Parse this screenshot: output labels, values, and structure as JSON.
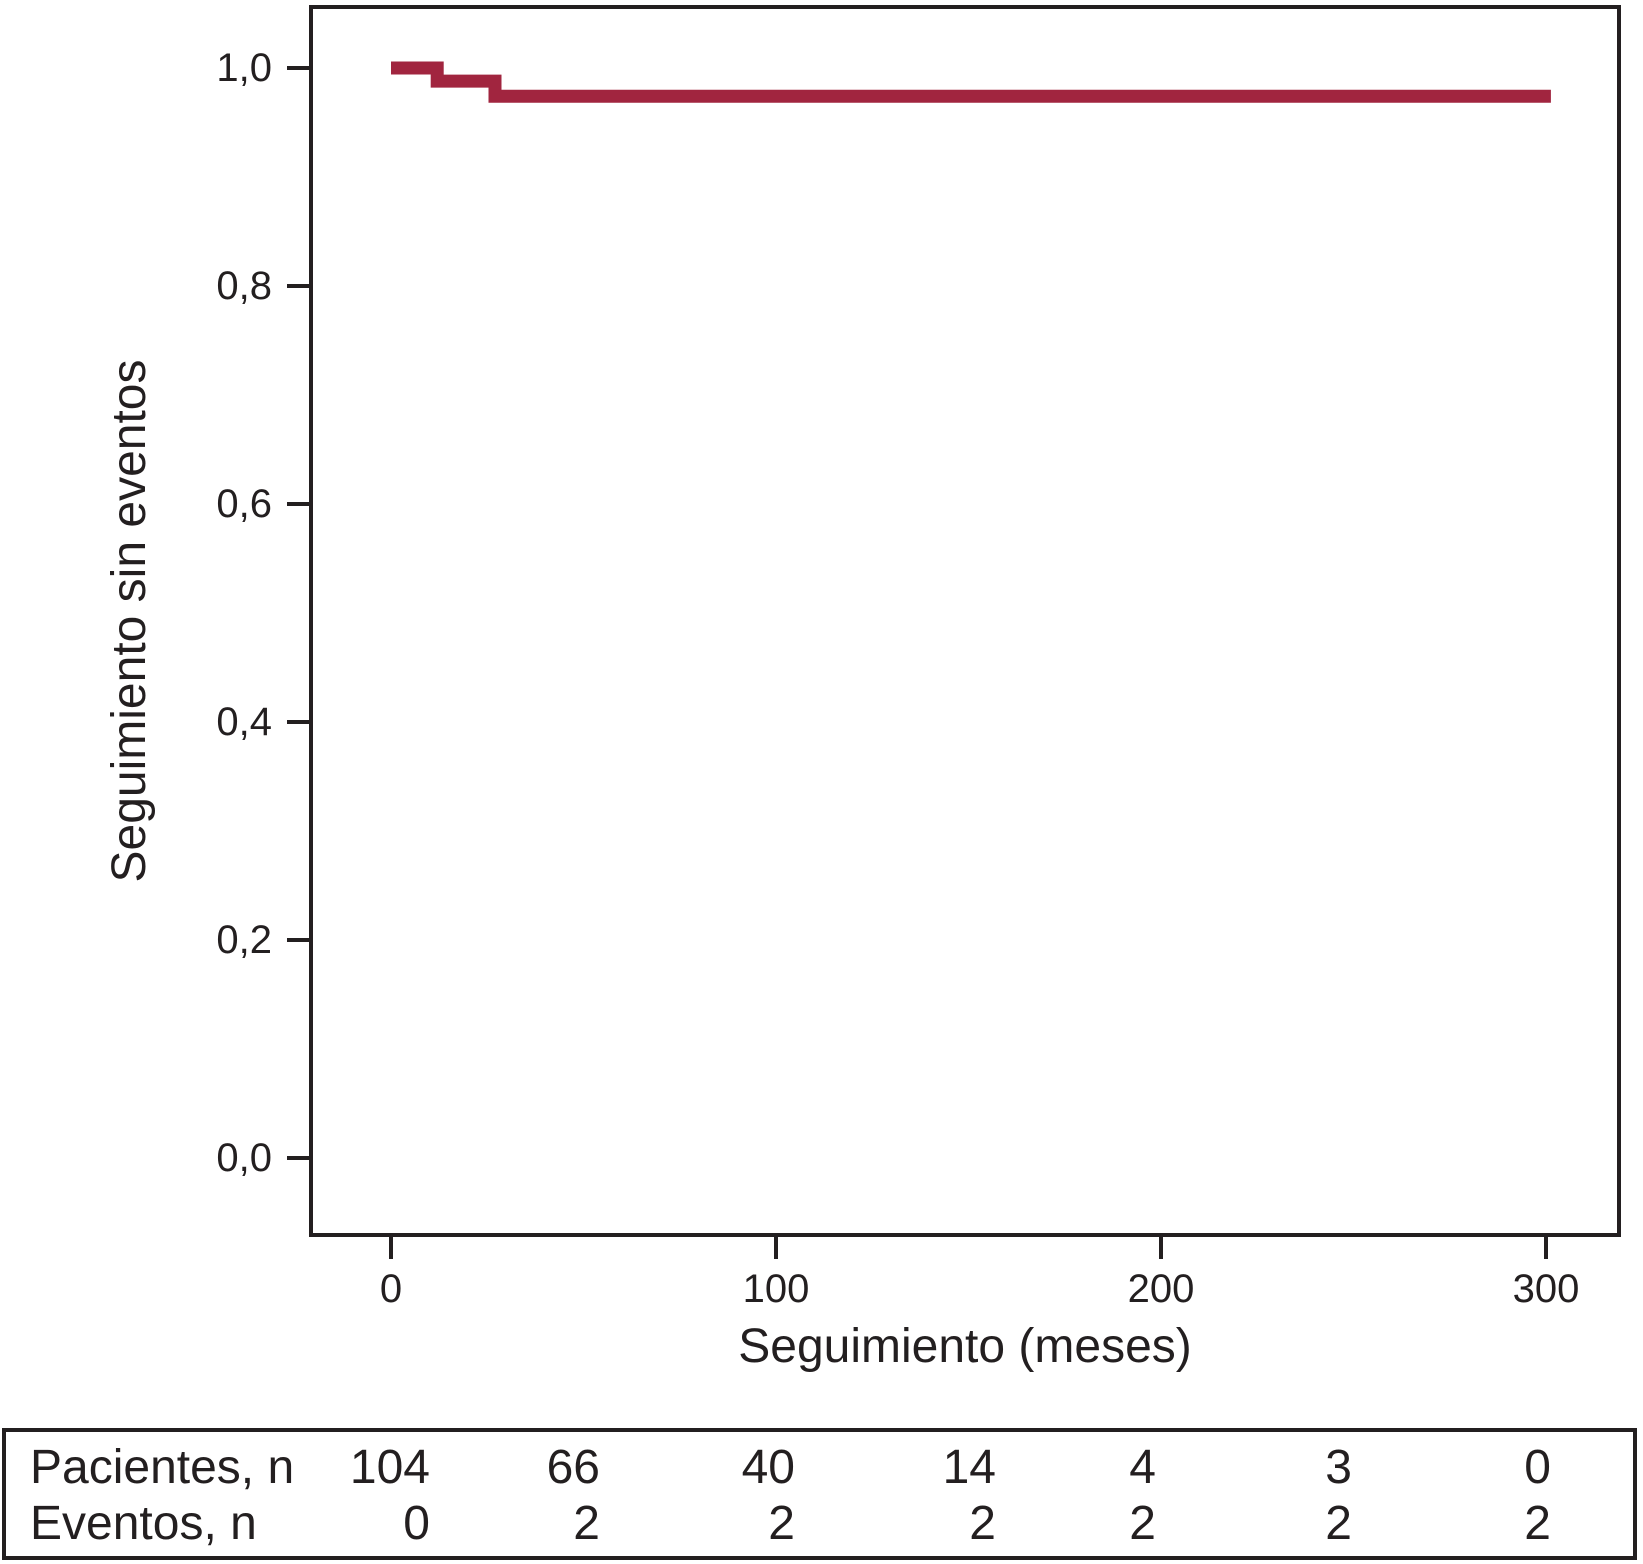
{
  "chart_data": {
    "type": "line",
    "subtype": "kaplan-meier-step-curve",
    "title": "",
    "xlabel": "Seguimiento (meses)",
    "ylabel": "Seguimiento sin eventos",
    "x_ticks": [
      0,
      100,
      200,
      300
    ],
    "x_tick_labels": [
      "0",
      "100",
      "200",
      "300"
    ],
    "y_tick_values": [
      0.0,
      0.2,
      0.4,
      0.6,
      0.8,
      1.0
    ],
    "y_tick_labels": [
      "0,0",
      "0,2",
      "0,4",
      "0,6",
      "0,8",
      "1,0"
    ],
    "xlim": [
      -21,
      319.5
    ],
    "ylim": [
      -0.073,
      1.058
    ],
    "grid": false,
    "legend": false,
    "series": [
      {
        "name": "Seguimiento sin eventos",
        "color": "#A1253F",
        "step_x": [
          0,
          12,
          12,
          27,
          27,
          301
        ],
        "step_y": [
          1.0,
          1.0,
          0.988,
          0.988,
          0.974,
          0.974
        ]
      }
    ],
    "risk_table": {
      "time_points": [
        0,
        50,
        100,
        150,
        200,
        250,
        300
      ],
      "rows": [
        {
          "label": "Pacientes, n",
          "values": [
            104,
            66,
            40,
            14,
            4,
            3,
            0
          ]
        },
        {
          "label": "Eventos, n",
          "values": [
            0,
            2,
            2,
            2,
            2,
            2,
            2
          ]
        }
      ]
    }
  },
  "colors": {
    "curve": "#A1253F",
    "axis": "#231F20",
    "background": "#FFFFFF"
  }
}
